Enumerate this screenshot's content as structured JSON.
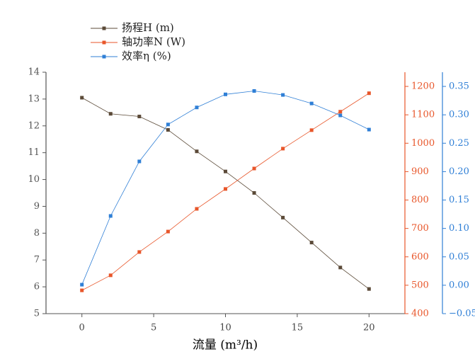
{
  "chart_data": {
    "type": "line",
    "x_label": "流量 (m³/h)",
    "x": [
      0,
      2,
      4,
      6,
      8,
      10,
      12,
      14,
      16,
      18,
      20
    ],
    "xlim": [
      -2.5,
      22.5
    ],
    "xticks": [
      0,
      5,
      10,
      15,
      20
    ],
    "ylim": [
      5,
      14
    ],
    "yticks": [
      5,
      6,
      7,
      8,
      9,
      10,
      11,
      12,
      13,
      14
    ],
    "y2lim": [
      400,
      1250
    ],
    "y2ticks": [
      400,
      500,
      600,
      700,
      800,
      900,
      1000,
      1100,
      1200
    ],
    "y3lim": [
      -0.05,
      0.375
    ],
    "y3ticks": [
      {
        "value": -0.05,
        "label": "−0.05"
      },
      {
        "value": 0,
        "label": "0.00"
      },
      {
        "value": 0.05,
        "label": "0.05"
      },
      {
        "value": 0.1,
        "label": "0.10"
      },
      {
        "value": 0.15,
        "label": "0.15"
      },
      {
        "value": 0.2,
        "label": "0.20"
      },
      {
        "value": 0.25,
        "label": "0.25"
      },
      {
        "value": 0.3,
        "label": "0.30"
      },
      {
        "value": 0.35,
        "label": "0.35"
      }
    ],
    "series": [
      {
        "name": "扬程H (m)",
        "color": "#5b4a38",
        "axis": "y",
        "values": [
          13.05,
          12.45,
          12.35,
          11.85,
          11.05,
          10.3,
          9.5,
          8.58,
          7.65,
          6.72,
          5.92
        ]
      },
      {
        "name": "轴功率N (W)",
        "color": "#e8562a",
        "axis": "y2",
        "values": [
          482,
          535,
          617,
          689,
          769,
          839,
          911,
          981,
          1046,
          1111,
          1176
        ]
      },
      {
        "name": "效率η (%)",
        "color": "#2f7fd6",
        "axis": "y3",
        "values": [
          0.001,
          0.122,
          0.218,
          0.283,
          0.313,
          0.336,
          0.342,
          0.335,
          0.32,
          0.299,
          0.274
        ]
      }
    ]
  }
}
